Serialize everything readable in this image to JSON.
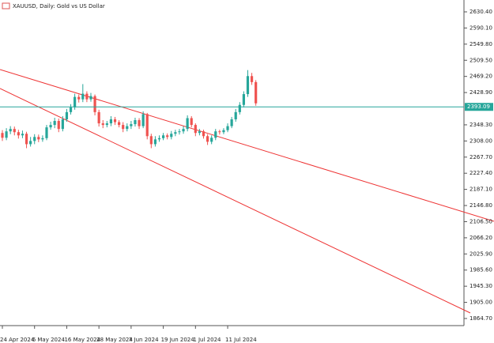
{
  "chart_data": {
    "type": "candlestick",
    "title": "XAUUSD, Daily:  Gold vs US Dollar",
    "categories": [
      "24 Apr 2024",
      null,
      null,
      null,
      null,
      null,
      null,
      null,
      "6 May 2024",
      null,
      null,
      null,
      null,
      null,
      null,
      null,
      "16 May 2024",
      null,
      null,
      null,
      null,
      null,
      null,
      null,
      "28 May 2024",
      null,
      null,
      null,
      null,
      null,
      null,
      null,
      "7 Jun 2024",
      null,
      null,
      null,
      null,
      null,
      null,
      null,
      "19 Jun 2024",
      null,
      null,
      null,
      null,
      null,
      null,
      null,
      "1 Jul 2024",
      null,
      null,
      null,
      null,
      null,
      null,
      null,
      "11 Jul 2024",
      null,
      null,
      null,
      null,
      null,
      null,
      null
    ],
    "open": [
      2328,
      2316,
      2332,
      2338,
      2330,
      2322,
      2326,
      2300,
      2308,
      2318,
      2312,
      2315,
      2342,
      2348,
      2358,
      2338,
      2362,
      2380,
      2392,
      2418,
      2412,
      2426,
      2412,
      2420,
      2380,
      2352,
      2348,
      2352,
      2362,
      2355,
      2348,
      2338,
      2345,
      2350,
      2360,
      2345,
      2375,
      2320,
      2300,
      2312,
      2315,
      2322,
      2318,
      2326,
      2330,
      2332,
      2338,
      2365,
      2348,
      2328,
      2332,
      2320,
      2306,
      2316,
      2332,
      2330,
      2335,
      2345,
      2362,
      2380,
      2398,
      2425,
      2470,
      2455
    ],
    "high": [
      2335,
      2340,
      2345,
      2344,
      2336,
      2334,
      2331,
      2318,
      2325,
      2324,
      2322,
      2348,
      2356,
      2366,
      2364,
      2370,
      2388,
      2400,
      2426,
      2424,
      2450,
      2432,
      2428,
      2424,
      2386,
      2360,
      2358,
      2370,
      2368,
      2360,
      2355,
      2352,
      2358,
      2366,
      2365,
      2382,
      2378,
      2326,
      2320,
      2322,
      2328,
      2327,
      2333,
      2336,
      2338,
      2345,
      2372,
      2370,
      2352,
      2338,
      2336,
      2325,
      2322,
      2338,
      2336,
      2340,
      2352,
      2368,
      2388,
      2405,
      2432,
      2485,
      2478,
      2460
    ],
    "low": [
      2308,
      2310,
      2325,
      2322,
      2314,
      2315,
      2290,
      2294,
      2300,
      2305,
      2306,
      2310,
      2336,
      2340,
      2330,
      2332,
      2356,
      2374,
      2386,
      2404,
      2405,
      2405,
      2406,
      2372,
      2344,
      2340,
      2342,
      2345,
      2348,
      2342,
      2330,
      2332,
      2338,
      2344,
      2338,
      2340,
      2312,
      2290,
      2294,
      2306,
      2310,
      2312,
      2312,
      2320,
      2324,
      2326,
      2332,
      2342,
      2320,
      2322,
      2314,
      2298,
      2300,
      2310,
      2324,
      2325,
      2330,
      2340,
      2356,
      2374,
      2392,
      2418,
      2448,
      2396
    ],
    "close": [
      2316,
      2332,
      2338,
      2330,
      2322,
      2326,
      2300,
      2308,
      2318,
      2312,
      2315,
      2342,
      2348,
      2358,
      2338,
      2362,
      2380,
      2392,
      2418,
      2412,
      2426,
      2412,
      2420,
      2380,
      2352,
      2348,
      2352,
      2362,
      2355,
      2348,
      2338,
      2345,
      2350,
      2360,
      2345,
      2375,
      2320,
      2300,
      2312,
      2315,
      2322,
      2318,
      2326,
      2330,
      2332,
      2338,
      2365,
      2348,
      2328,
      2332,
      2320,
      2306,
      2316,
      2332,
      2330,
      2335,
      2345,
      2362,
      2380,
      2398,
      2425,
      2470,
      2455,
      2402
    ],
    "up_color": "#26a69a",
    "down_color": "#ef5350",
    "current_price": 2393.09,
    "current_price_color": "#26a69a",
    "ylim": [
      1841,
      2660
    ],
    "yticks": [
      {
        "value": 2630.4,
        "label": "2630.40"
      },
      {
        "value": 2590.1,
        "label": "2590.10"
      },
      {
        "value": 2549.8,
        "label": "2549.80"
      },
      {
        "value": 2509.5,
        "label": "2509.50"
      },
      {
        "value": 2469.2,
        "label": "2469.20"
      },
      {
        "value": 2428.9,
        "label": "2428.90"
      },
      {
        "value": 2348.3,
        "label": "2348.30"
      },
      {
        "value": 2308,
        "label": "2308.00"
      },
      {
        "value": 2267.7,
        "label": "2267.70"
      },
      {
        "value": 2227.4,
        "label": "2227.40"
      },
      {
        "value": 2187.1,
        "label": "2187.10"
      },
      {
        "value": 2146.8,
        "label": "2146.80"
      },
      {
        "value": 2106.5,
        "label": "2106.50"
      },
      {
        "value": 2066.2,
        "label": "2066.20"
      },
      {
        "value": 2025.9,
        "label": "2025.90"
      },
      {
        "value": 1985.6,
        "label": "1985.60"
      },
      {
        "value": 1945.3,
        "label": "1945.30"
      },
      {
        "value": 1905,
        "label": "1905.00"
      },
      {
        "value": 1864.7,
        "label": "1864.70"
      }
    ]
  }
}
